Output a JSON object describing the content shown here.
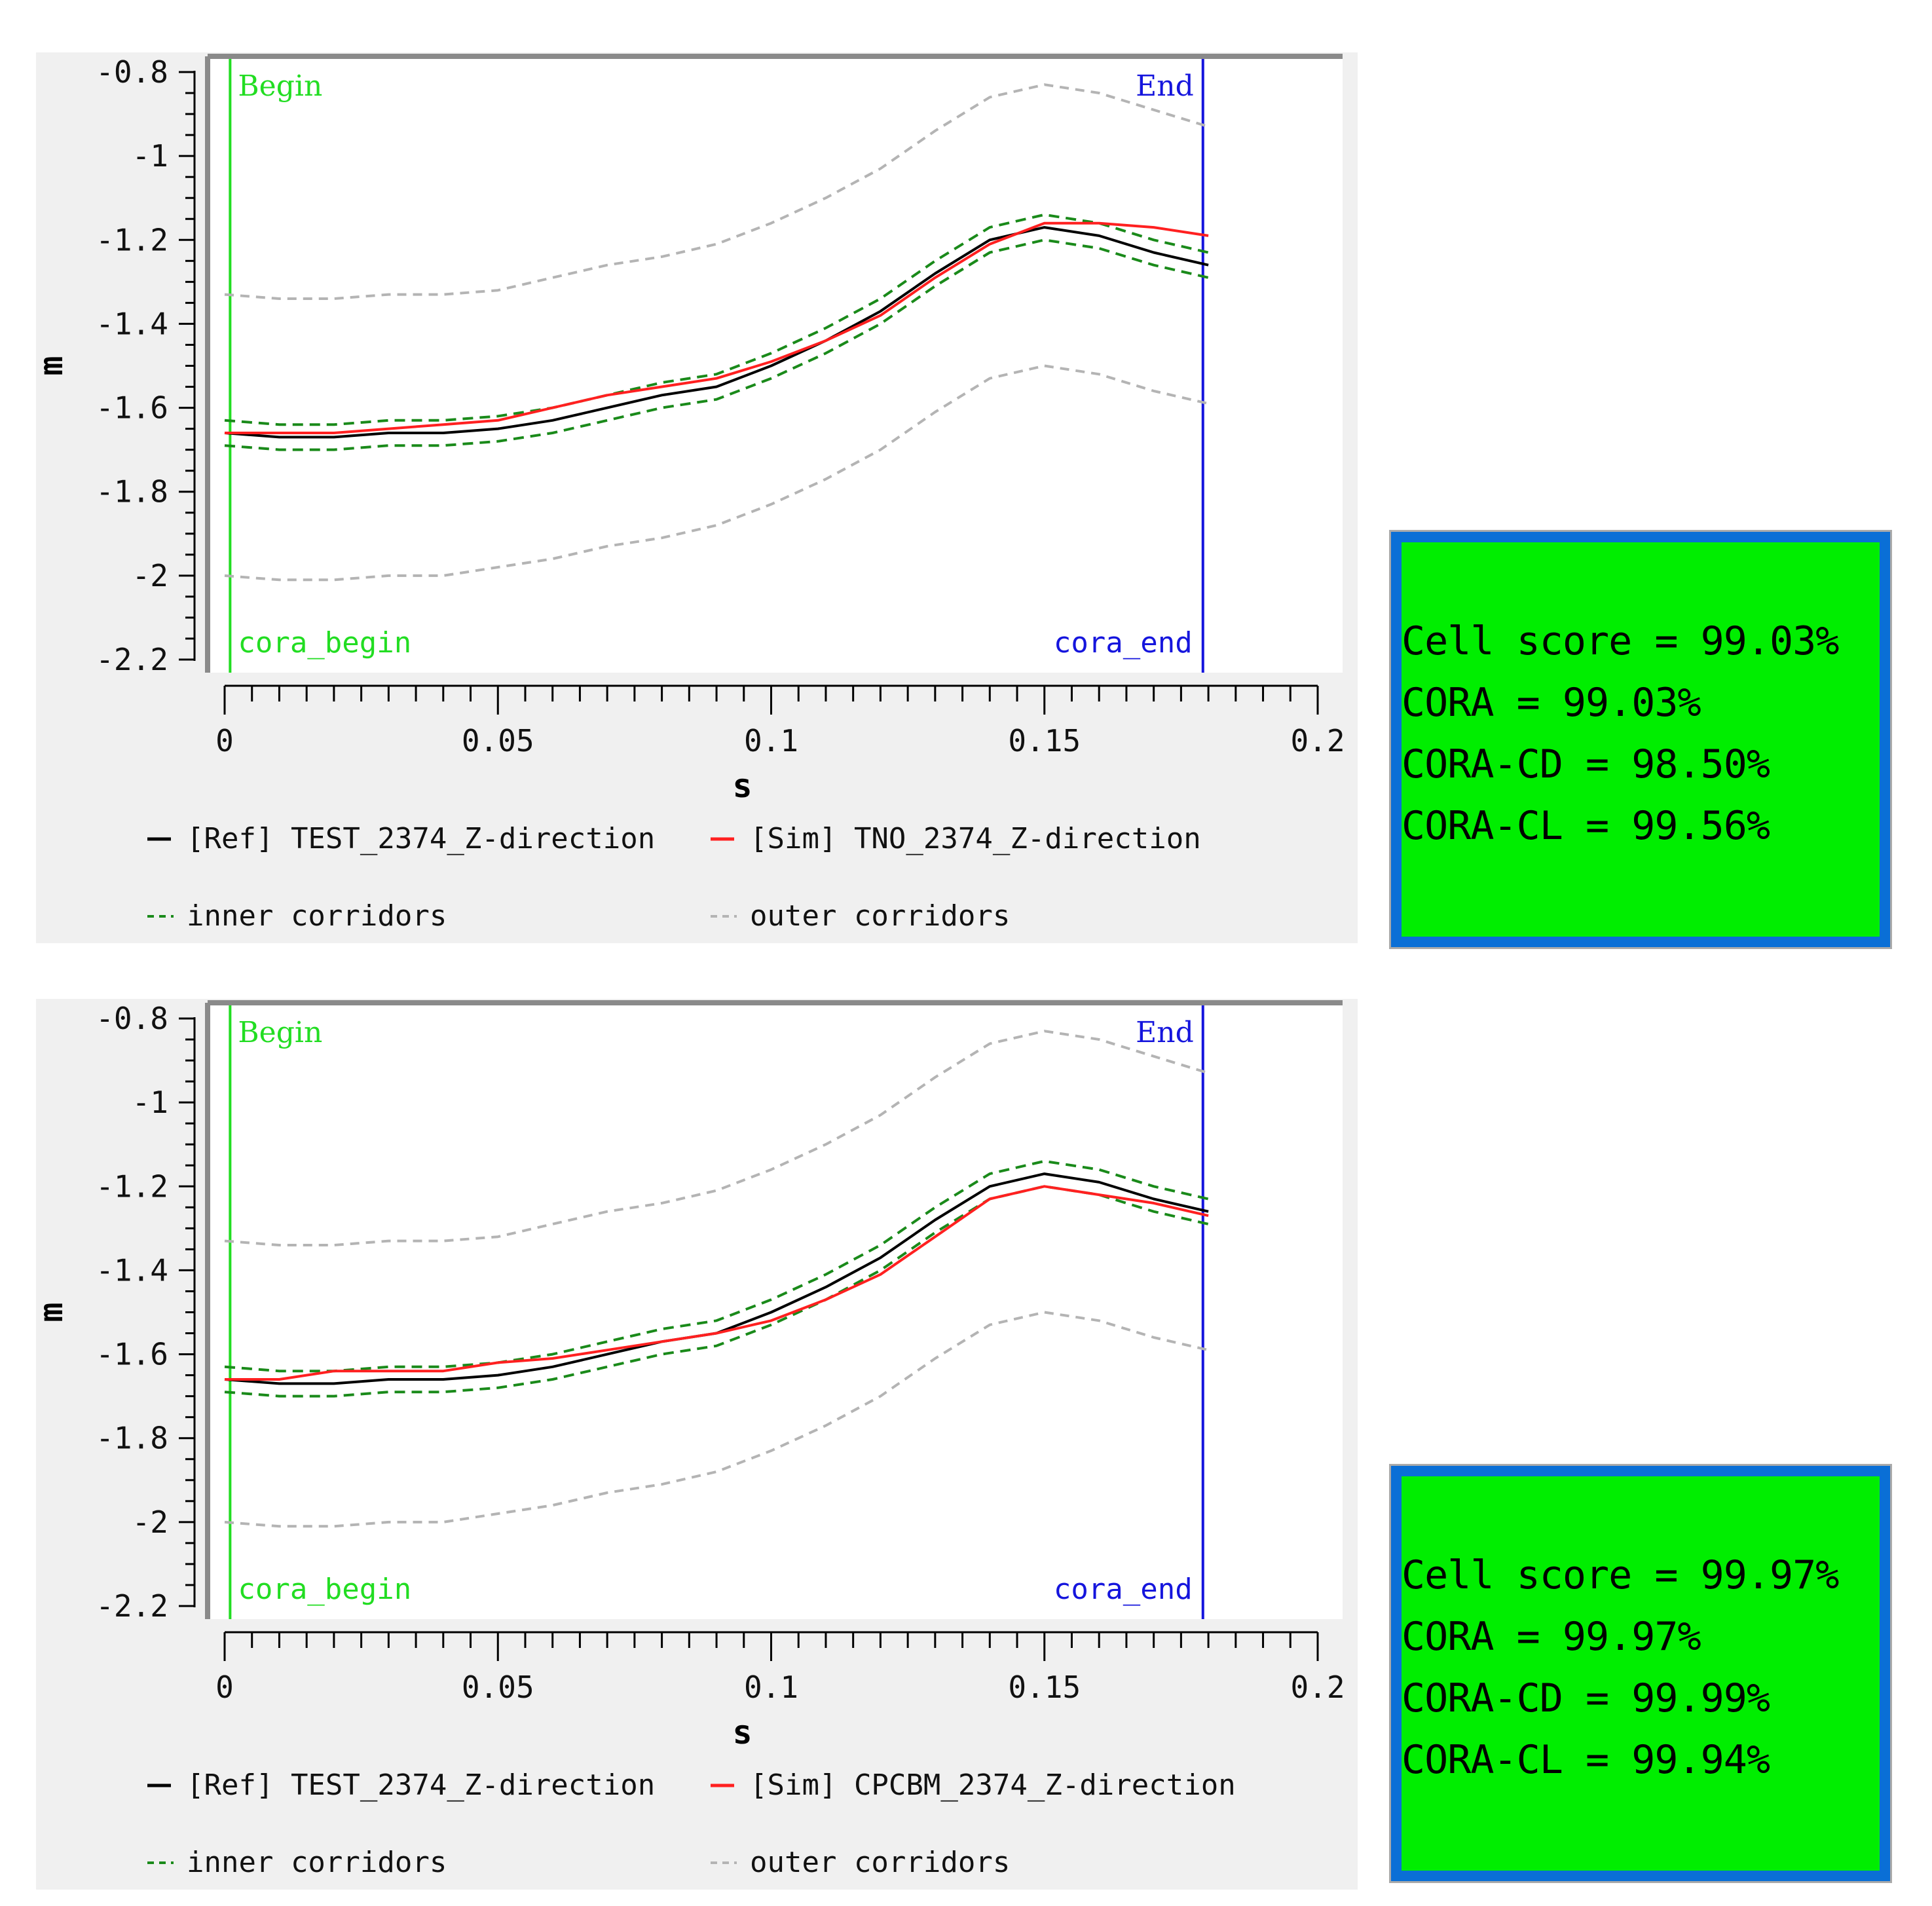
{
  "colors": {
    "ref": "#000000",
    "sim": "#ff2020",
    "inner": "#1a8a1a",
    "outer": "#b4b4b4",
    "begin": "#22dd22",
    "end": "#1515dd",
    "score_bg": "#00ee00",
    "score_border": "#0a6fd6"
  },
  "panels": [
    {
      "chart_data": {
        "type": "line",
        "title": "",
        "xlabel": "s",
        "ylabel": "m",
        "xlim": [
          0,
          0.2
        ],
        "ylim": [
          -2.2,
          -0.8
        ],
        "xticks": [
          0,
          0.05,
          0.1,
          0.15,
          0.2
        ],
        "xtick_labels": [
          "0",
          "0.05",
          "0.1",
          "0.15",
          "0.2"
        ],
        "yticks": [
          -0.8,
          -1,
          -1.2,
          -1.4,
          -1.6,
          -1.8,
          -2,
          -2.2
        ],
        "ytick_labels": [
          "-0.8",
          "-1",
          "-1.2",
          "-1.4",
          "-1.6",
          "-1.8",
          "-2",
          "-2.2"
        ],
        "markers": {
          "begin_x": 0.001,
          "end_x": 0.179,
          "begin": "Begin",
          "end": "End",
          "cora_begin": "cora_begin",
          "cora_end": "cora_end"
        },
        "x": [
          0,
          0.01,
          0.02,
          0.03,
          0.04,
          0.05,
          0.06,
          0.07,
          0.08,
          0.09,
          0.1,
          0.11,
          0.12,
          0.13,
          0.14,
          0.15,
          0.16,
          0.17,
          0.18
        ],
        "series": [
          {
            "name": "[Ref] TEST_2374_Z-direction",
            "role": "ref",
            "values": [
              -1.66,
              -1.67,
              -1.67,
              -1.66,
              -1.66,
              -1.65,
              -1.63,
              -1.6,
              -1.57,
              -1.55,
              -1.5,
              -1.44,
              -1.37,
              -1.28,
              -1.2,
              -1.17,
              -1.19,
              -1.23,
              -1.26
            ]
          },
          {
            "name": "[Sim] TNO_2374_Z-direction",
            "role": "sim",
            "values": [
              -1.66,
              -1.66,
              -1.66,
              -1.65,
              -1.64,
              -1.63,
              -1.6,
              -1.57,
              -1.55,
              -1.53,
              -1.49,
              -1.44,
              -1.38,
              -1.29,
              -1.21,
              -1.16,
              -1.16,
              -1.17,
              -1.19
            ]
          },
          {
            "name": "inner corridor upper",
            "role": "inner",
            "values": [
              -1.63,
              -1.64,
              -1.64,
              -1.63,
              -1.63,
              -1.62,
              -1.6,
              -1.57,
              -1.54,
              -1.52,
              -1.47,
              -1.41,
              -1.34,
              -1.25,
              -1.17,
              -1.14,
              -1.16,
              -1.2,
              -1.23
            ]
          },
          {
            "name": "inner corridor lower",
            "role": "inner",
            "values": [
              -1.69,
              -1.7,
              -1.7,
              -1.69,
              -1.69,
              -1.68,
              -1.66,
              -1.63,
              -1.6,
              -1.58,
              -1.53,
              -1.47,
              -1.4,
              -1.31,
              -1.23,
              -1.2,
              -1.22,
              -1.26,
              -1.29
            ]
          },
          {
            "name": "outer corridor upper",
            "role": "outer",
            "values": [
              -1.33,
              -1.34,
              -1.34,
              -1.33,
              -1.33,
              -1.32,
              -1.29,
              -1.26,
              -1.24,
              -1.21,
              -1.16,
              -1.1,
              -1.03,
              -0.94,
              -0.86,
              -0.83,
              -0.85,
              -0.89,
              -0.93
            ]
          },
          {
            "name": "outer corridor lower",
            "role": "outer",
            "values": [
              -2.0,
              -2.01,
              -2.01,
              -2.0,
              -2.0,
              -1.98,
              -1.96,
              -1.93,
              -1.91,
              -1.88,
              -1.83,
              -1.77,
              -1.7,
              -1.61,
              -1.53,
              -1.5,
              -1.52,
              -1.56,
              -1.59
            ]
          }
        ],
        "legend": {
          "ref": "— [Ref]  TEST_2374_Z-direction",
          "sim": "— [Sim]  TNO_2374_Z-direction",
          "inner": "-- inner corridors",
          "outer": "-- outer corridors"
        }
      },
      "scores": [
        "Cell score = 99.03%",
        "CORA = 99.03%",
        "CORA-CD = 98.50%",
        "CORA-CL = 99.56%"
      ]
    },
    {
      "chart_data": {
        "type": "line",
        "title": "",
        "xlabel": "s",
        "ylabel": "m",
        "xlim": [
          0,
          0.2
        ],
        "ylim": [
          -2.2,
          -0.8
        ],
        "xticks": [
          0,
          0.05,
          0.1,
          0.15,
          0.2
        ],
        "xtick_labels": [
          "0",
          "0.05",
          "0.1",
          "0.15",
          "0.2"
        ],
        "yticks": [
          -0.8,
          -1,
          -1.2,
          -1.4,
          -1.6,
          -1.8,
          -2,
          -2.2
        ],
        "ytick_labels": [
          "-0.8",
          "-1",
          "-1.2",
          "-1.4",
          "-1.6",
          "-1.8",
          "-2",
          "-2.2"
        ],
        "markers": {
          "begin_x": 0.001,
          "end_x": 0.179,
          "begin": "Begin",
          "end": "End",
          "cora_begin": "cora_begin",
          "cora_end": "cora_end"
        },
        "x": [
          0,
          0.01,
          0.02,
          0.03,
          0.04,
          0.05,
          0.06,
          0.07,
          0.08,
          0.09,
          0.1,
          0.11,
          0.12,
          0.13,
          0.14,
          0.15,
          0.16,
          0.17,
          0.18
        ],
        "series": [
          {
            "name": "[Ref] TEST_2374_Z-direction",
            "role": "ref",
            "values": [
              -1.66,
              -1.67,
              -1.67,
              -1.66,
              -1.66,
              -1.65,
              -1.63,
              -1.6,
              -1.57,
              -1.55,
              -1.5,
              -1.44,
              -1.37,
              -1.28,
              -1.2,
              -1.17,
              -1.19,
              -1.23,
              -1.26
            ]
          },
          {
            "name": "[Sim] CPCBM_2374_Z-direction",
            "role": "sim",
            "values": [
              -1.66,
              -1.66,
              -1.64,
              -1.64,
              -1.64,
              -1.62,
              -1.61,
              -1.59,
              -1.57,
              -1.55,
              -1.52,
              -1.47,
              -1.41,
              -1.32,
              -1.23,
              -1.2,
              -1.22,
              -1.24,
              -1.27
            ]
          },
          {
            "name": "inner corridor upper",
            "role": "inner",
            "values": [
              -1.63,
              -1.64,
              -1.64,
              -1.63,
              -1.63,
              -1.62,
              -1.6,
              -1.57,
              -1.54,
              -1.52,
              -1.47,
              -1.41,
              -1.34,
              -1.25,
              -1.17,
              -1.14,
              -1.16,
              -1.2,
              -1.23
            ]
          },
          {
            "name": "inner corridor lower",
            "role": "inner",
            "values": [
              -1.69,
              -1.7,
              -1.7,
              -1.69,
              -1.69,
              -1.68,
              -1.66,
              -1.63,
              -1.6,
              -1.58,
              -1.53,
              -1.47,
              -1.4,
              -1.31,
              -1.23,
              -1.2,
              -1.22,
              -1.26,
              -1.29
            ]
          },
          {
            "name": "outer corridor upper",
            "role": "outer",
            "values": [
              -1.33,
              -1.34,
              -1.34,
              -1.33,
              -1.33,
              -1.32,
              -1.29,
              -1.26,
              -1.24,
              -1.21,
              -1.16,
              -1.1,
              -1.03,
              -0.94,
              -0.86,
              -0.83,
              -0.85,
              -0.89,
              -0.93
            ]
          },
          {
            "name": "outer corridor lower",
            "role": "outer",
            "values": [
              -2.0,
              -2.01,
              -2.01,
              -2.0,
              -2.0,
              -1.98,
              -1.96,
              -1.93,
              -1.91,
              -1.88,
              -1.83,
              -1.77,
              -1.7,
              -1.61,
              -1.53,
              -1.5,
              -1.52,
              -1.56,
              -1.59
            ]
          }
        ],
        "legend": {
          "ref": "— [Ref]  TEST_2374_Z-direction",
          "sim": "— [Sim]  CPCBM_2374_Z-direction",
          "inner": "-- inner corridors",
          "outer": "-- outer corridors"
        }
      },
      "scores": [
        "Cell score = 99.97%",
        "CORA = 99.97%",
        "CORA-CD = 99.99%",
        "CORA-CL = 99.94%"
      ]
    }
  ]
}
